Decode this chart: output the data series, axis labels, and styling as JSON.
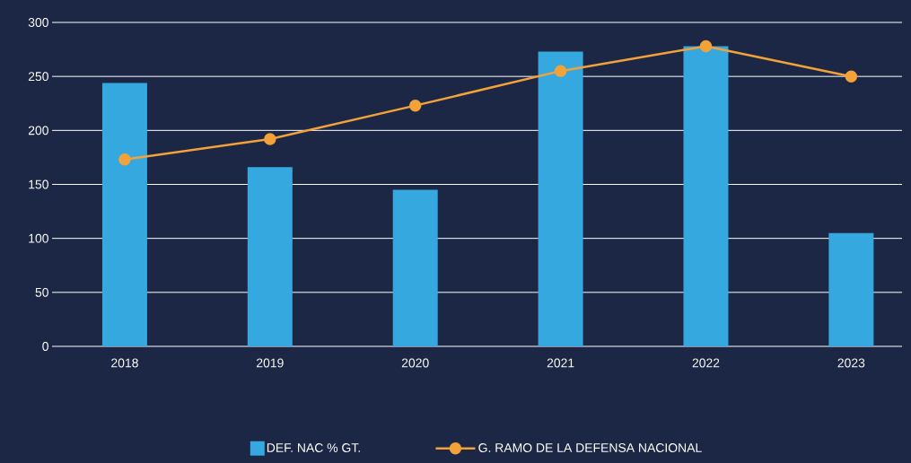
{
  "chart_data": {
    "type": "bar",
    "categories": [
      "2018",
      "2019",
      "2020",
      "2021",
      "2022",
      "2023"
    ],
    "series": [
      {
        "name": "DEF. NAC % GT.",
        "color": "#35a8e0",
        "values": [
          244,
          166,
          145,
          273,
          278,
          105
        ]
      },
      {
        "name": "G. RAMO DE LA DEFENSA NACIONAL",
        "type": "line",
        "color": "#f3a23a",
        "values": [
          173,
          192,
          223,
          255,
          278,
          250
        ]
      }
    ],
    "ylim": [
      0,
      300
    ],
    "yticks": [
      0,
      50,
      100,
      150,
      200,
      250,
      300
    ],
    "grid": "y",
    "legend": "bottom",
    "marker": "circle",
    "line_style": "solid"
  }
}
